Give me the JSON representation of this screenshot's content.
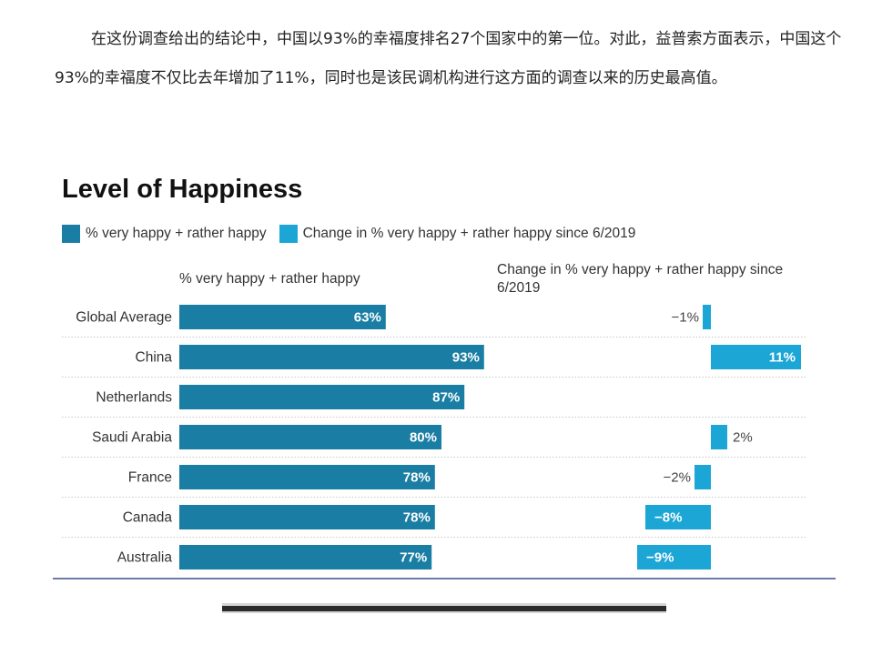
{
  "article": {
    "paragraph": "在这份调查给出的结论中，中国以93%的幸福度排名27个国家中的第一位。对此，益普索方面表示，中国这个93%的幸福度不仅比去年增加了11%，同时也是该民调机构进行这方面的调查以来的历史最高值。"
  },
  "colors": {
    "primary_bar": "#1a7ea4",
    "change_bar": "#1ba6d6",
    "baseline": "#3d4f8c"
  },
  "chart_data": {
    "type": "bar",
    "title": "Level of Happiness",
    "legend": [
      "% very happy + rather happy",
      "Change in % very happy + rather happy since 6/2019"
    ],
    "legend_placement": "top-left",
    "left_panel_label": "% very happy + rather happy",
    "right_panel_label": "Change in % very happy + rather happy since 6/2019",
    "categories": [
      "Global Average",
      "China",
      "Netherlands",
      "Saudi Arabia",
      "France",
      "Canada",
      "Australia"
    ],
    "series": [
      {
        "name": "% very happy + rather happy",
        "values": [
          63,
          93,
          87,
          80,
          78,
          78,
          77
        ],
        "labels": [
          "63%",
          "93%",
          "87%",
          "80%",
          "78%",
          "78%",
          "77%"
        ]
      },
      {
        "name": "Change in % very happy + rather happy since 6/2019",
        "values": [
          -1,
          11,
          0,
          2,
          -2,
          -8,
          -9
        ],
        "labels": [
          "−1%",
          "11%",
          "",
          "2%",
          "−2%",
          "−8%",
          "−9%"
        ]
      }
    ],
    "grid": false
  }
}
